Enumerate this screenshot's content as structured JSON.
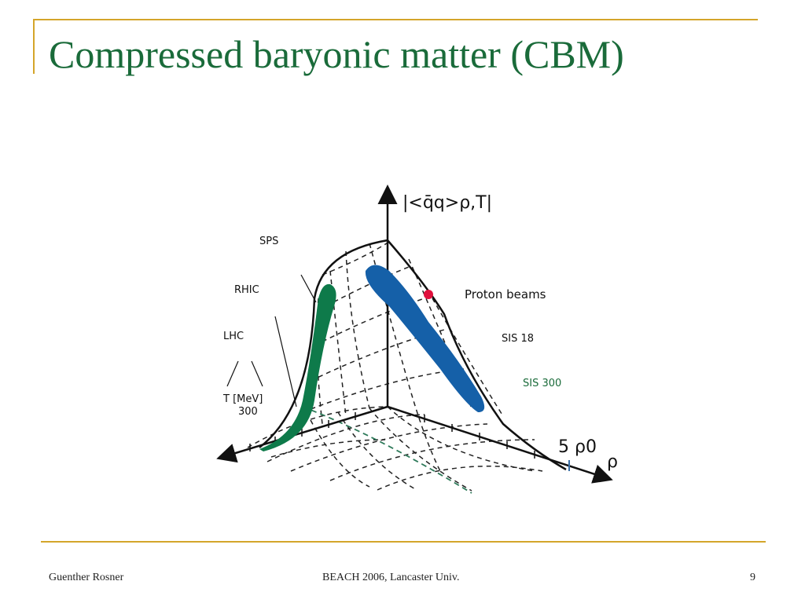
{
  "slide": {
    "title": "Compressed baryonic matter (CBM)",
    "footer_left": "Guenther Rosner",
    "footer_center": "BEACH 2006, Lancaster Univ.",
    "page_number": "9"
  },
  "diagram": {
    "vertical_axis_label": "|<q̄q>ρ,T|",
    "rho_axis_label": "ρ",
    "rho_tick_label": "5 ρ0",
    "labels": {
      "sps": "SPS",
      "rhic": "RHIC",
      "lhc": "LHC",
      "t_mev": "T [MeV]",
      "t_300": "300",
      "proton_beams": "Proton beams",
      "sis18": "SIS 18",
      "sis300": "SIS 300"
    },
    "colors": {
      "title": "#1a6b3a",
      "frame": "#d4a52a",
      "green_region": "#0e7a4a",
      "blue_region": "#1560a8",
      "proton_dot": "#e0103c"
    }
  }
}
